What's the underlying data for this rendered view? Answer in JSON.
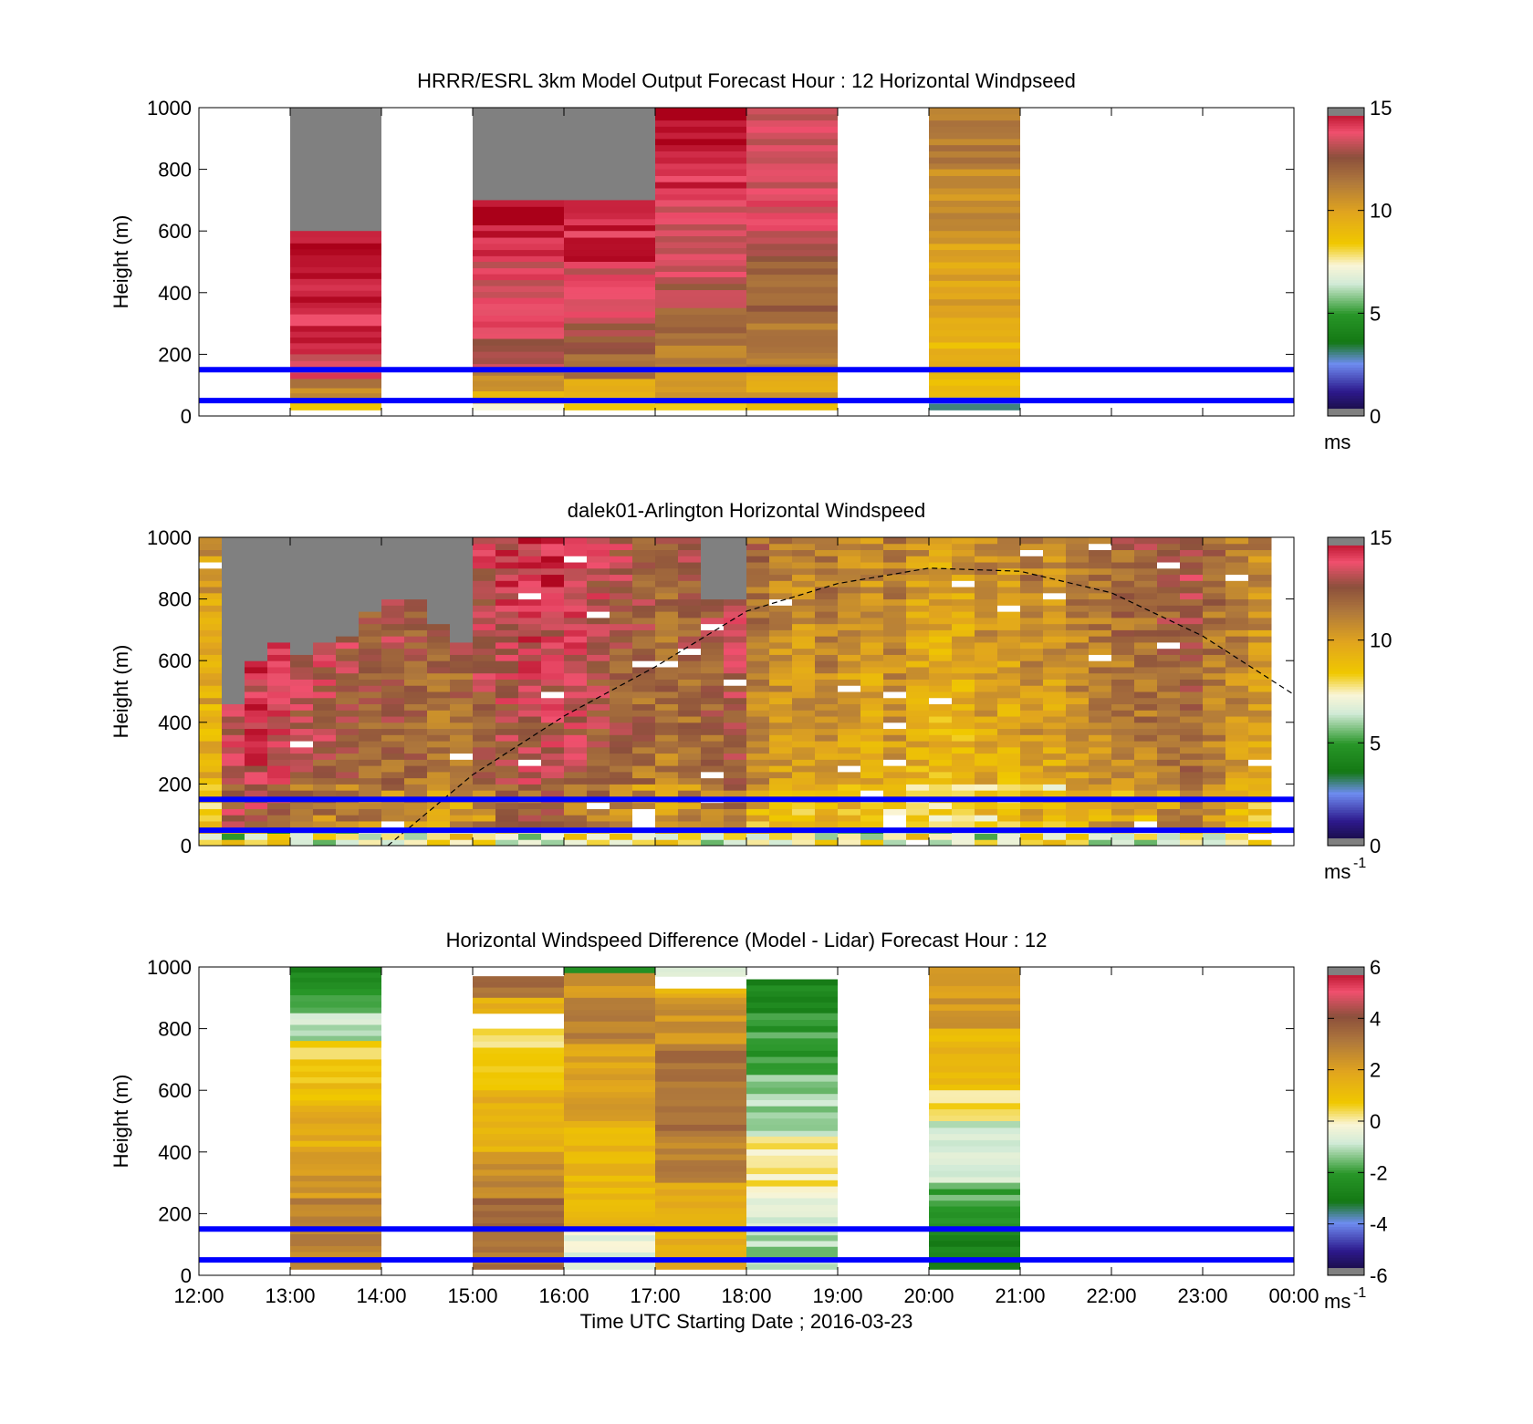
{
  "chart_data": [
    {
      "type": "heatmap",
      "title": "HRRR/ESRL 3km Model Output   Forecast Hour : 12 Horizontal Windpseed",
      "ylabel": "Height (m)",
      "ylim": [
        0,
        1000
      ],
      "yticks": [
        "0",
        "200",
        "400",
        "600",
        "800",
        "1000"
      ],
      "xlim_hours": [
        12,
        24
      ],
      "colorbar": {
        "ticks": [
          "0",
          "5",
          "10",
          "15"
        ],
        "range": [
          0,
          15
        ],
        "unit": "ms",
        "unit_sup": "",
        "scale": "speed"
      },
      "reference_lines_m": [
        50,
        150
      ],
      "columns": [
        {
          "start_hour": 13,
          "end_hour": 14,
          "top_m": 1000,
          "bands": [
            {
              "y0": 600,
              "y1": 1000,
              "v": null
            },
            {
              "y0": 350,
              "y1": 600,
              "v": 14.7
            },
            {
              "y0": 200,
              "y1": 350,
              "v": 14.3
            },
            {
              "y0": 120,
              "y1": 200,
              "v": 13.7
            },
            {
              "y0": 90,
              "y1": 120,
              "v": 12.0
            },
            {
              "y0": 60,
              "y1": 90,
              "v": 11.0
            },
            {
              "y0": 40,
              "y1": 60,
              "v": 10.0
            },
            {
              "y0": 20,
              "y1": 40,
              "v": 9.0
            }
          ]
        },
        {
          "start_hour": 15,
          "end_hour": 16,
          "top_m": 1000,
          "bands": [
            {
              "y0": 700,
              "y1": 1000,
              "v": null
            },
            {
              "y0": 600,
              "y1": 700,
              "v": 14.8
            },
            {
              "y0": 500,
              "y1": 600,
              "v": 14.3
            },
            {
              "y0": 250,
              "y1": 500,
              "v": 13.6
            },
            {
              "y0": 150,
              "y1": 250,
              "v": 13.0
            },
            {
              "y0": 80,
              "y1": 150,
              "v": 11.0
            },
            {
              "y0": 40,
              "y1": 80,
              "v": 9.5
            },
            {
              "y0": 20,
              "y1": 40,
              "v": 7.0
            }
          ]
        },
        {
          "start_hour": 16,
          "end_hour": 17,
          "top_m": 1000,
          "bands": [
            {
              "y0": 700,
              "y1": 1000,
              "v": null
            },
            {
              "y0": 600,
              "y1": 700,
              "v": 14.6
            },
            {
              "y0": 500,
              "y1": 600,
              "v": 14.3
            },
            {
              "y0": 300,
              "y1": 500,
              "v": 13.6
            },
            {
              "y0": 200,
              "y1": 300,
              "v": 12.6
            },
            {
              "y0": 120,
              "y1": 200,
              "v": 11.5
            },
            {
              "y0": 60,
              "y1": 120,
              "v": 9.8
            },
            {
              "y0": 20,
              "y1": 60,
              "v": 8.5
            }
          ]
        },
        {
          "start_hour": 17,
          "end_hour": 18,
          "top_m": 1000,
          "bands": [
            {
              "y0": 800,
              "y1": 1000,
              "v": 14.6
            },
            {
              "y0": 700,
              "y1": 800,
              "v": 14.3
            },
            {
              "y0": 450,
              "y1": 700,
              "v": 13.6
            },
            {
              "y0": 350,
              "y1": 450,
              "v": 12.8
            },
            {
              "y0": 250,
              "y1": 350,
              "v": 11.8
            },
            {
              "y0": 150,
              "y1": 250,
              "v": 11.2
            },
            {
              "y0": 60,
              "y1": 150,
              "v": 10.2
            },
            {
              "y0": 20,
              "y1": 60,
              "v": 8.8
            }
          ]
        },
        {
          "start_hour": 18,
          "end_hour": 19,
          "top_m": 1000,
          "bands": [
            {
              "y0": 600,
              "y1": 1000,
              "v": 13.6
            },
            {
              "y0": 500,
              "y1": 600,
              "v": 13.0
            },
            {
              "y0": 300,
              "y1": 500,
              "v": 12.0
            },
            {
              "y0": 150,
              "y1": 300,
              "v": 11.3
            },
            {
              "y0": 60,
              "y1": 150,
              "v": 10.0
            },
            {
              "y0": 20,
              "y1": 60,
              "v": 9.2
            }
          ]
        },
        {
          "start_hour": 20,
          "end_hour": 21,
          "top_m": 1000,
          "bands": [
            {
              "y0": 800,
              "y1": 1000,
              "v": 11.3
            },
            {
              "y0": 600,
              "y1": 800,
              "v": 10.7
            },
            {
              "y0": 300,
              "y1": 600,
              "v": 10.0
            },
            {
              "y0": 60,
              "y1": 300,
              "v": 9.2
            },
            {
              "y0": 20,
              "y1": 60,
              "v": 3.0
            }
          ]
        }
      ]
    },
    {
      "type": "heatmap",
      "title": "dalek01-Arlington  Horizontal Windspeed",
      "ylabel": "Height (m)",
      "ylim": [
        0,
        1000
      ],
      "yticks": [
        "0",
        "200",
        "400",
        "600",
        "800",
        "1000"
      ],
      "xlim_hours": [
        12,
        24
      ],
      "colorbar": {
        "ticks": [
          "0",
          "5",
          "10",
          "15"
        ],
        "range": [
          0,
          15
        ],
        "unit": "ms",
        "unit_sup": "-1",
        "scale": "speed"
      },
      "reference_lines_m": [
        50,
        150
      ],
      "overlay_curve": {
        "style": "dashed",
        "start_hour": 14.07,
        "peak_hour": 20.0,
        "peak_m": 900,
        "points": [
          [
            14.07,
            0
          ],
          [
            15.0,
            230
          ],
          [
            16.0,
            420
          ],
          [
            17.0,
            580
          ],
          [
            18.0,
            760
          ],
          [
            19.0,
            850
          ],
          [
            20.0,
            900
          ],
          [
            21.0,
            890
          ],
          [
            22.0,
            820
          ],
          [
            23.0,
            680
          ],
          [
            24.0,
            490
          ]
        ]
      },
      "profiles": {
        "start_hour": 12.0,
        "step_hours": 0.25,
        "tops_m": [
          1000,
          460,
          590,
          650,
          620,
          660,
          680,
          750,
          800,
          800,
          720,
          660,
          1000,
          1000,
          1000,
          1000,
          1000,
          1000,
          1000,
          1000,
          1000,
          1000,
          800,
          800,
          1000,
          1000,
          1000,
          1000,
          1000,
          1000,
          1000,
          1000,
          1000,
          1000,
          1000,
          1000,
          1000,
          1000,
          1000,
          1000,
          1000,
          1000,
          1000,
          1000,
          1000,
          1000,
          1000,
          1000
        ],
        "profile_means": [
          9.5,
          13.6,
          13.8,
          13.6,
          13.0,
          12.8,
          12.5,
          12.0,
          12.2,
          12.0,
          11.6,
          11.8,
          12.5,
          13.0,
          13.2,
          13.2,
          13.0,
          12.6,
          12.2,
          11.8,
          11.4,
          11.8,
          12.0,
          12.6,
          11.0,
          10.4,
          10.2,
          10.6,
          10.0,
          9.8,
          10.4,
          9.6,
          9.2,
          9.4,
          10.0,
          9.6,
          10.4,
          10.0,
          10.6,
          10.8,
          11.2,
          11.4,
          11.8,
          12.0,
          11.0,
          10.6,
          10.2,
          9.8
        ],
        "missing_gaps_m": [
          [
            850,
            980
          ],
          [
            700,
            980
          ],
          [
            500,
            600
          ],
          [
            700,
            980
          ],
          [
            650,
            980
          ],
          [
            700,
            980
          ],
          [
            800,
            980
          ]
        ]
      }
    },
    {
      "type": "heatmap",
      "title": "Horizontal Windspeed Difference (Model - Lidar) Forecast Hour : 12",
      "ylabel": "Height (m)",
      "xlabel": "Time UTC  Starting Date ; 2016-03-23",
      "ylim": [
        0,
        1000
      ],
      "yticks": [
        "0",
        "200",
        "400",
        "600",
        "800",
        "1000"
      ],
      "xlim_hours": [
        12,
        24
      ],
      "xticks": [
        "12:00",
        "13:00",
        "14:00",
        "15:00",
        "16:00",
        "17:00",
        "18:00",
        "19:00",
        "20:00",
        "21:00",
        "22:00",
        "23:00",
        "00:00"
      ],
      "colorbar": {
        "ticks": [
          "-6",
          "-4",
          "-2",
          "0",
          "2",
          "4",
          "6"
        ],
        "range": [
          -6,
          6
        ],
        "unit": "ms",
        "unit_sup": "-1",
        "scale": "difference"
      },
      "reference_lines_m": [
        50,
        150
      ],
      "columns": [
        {
          "start_hour": 13,
          "end_hour": 14,
          "top_m": 1000,
          "bands": [
            {
              "y0": 950,
              "y1": 1000,
              "v": -2.6
            },
            {
              "y0": 850,
              "y1": 950,
              "v": -2.0
            },
            {
              "y0": 760,
              "y1": 850,
              "v": -1.0
            },
            {
              "y0": 700,
              "y1": 760,
              "v": 0.4
            },
            {
              "y0": 550,
              "y1": 700,
              "v": 1.0
            },
            {
              "y0": 400,
              "y1": 550,
              "v": 1.6
            },
            {
              "y0": 250,
              "y1": 400,
              "v": 2.2
            },
            {
              "y0": 20,
              "y1": 250,
              "v": 2.8
            }
          ]
        },
        {
          "start_hour": 15,
          "end_hour": 16,
          "top_m": 970,
          "bands": [
            {
              "y0": 900,
              "y1": 970,
              "v": 3.5
            },
            {
              "y0": 850,
              "y1": 900,
              "v": 1.5
            },
            {
              "y0": 600,
              "y1": 800,
              "v": 0.5
            },
            {
              "y0": 400,
              "y1": 600,
              "v": 1.6
            },
            {
              "y0": 250,
              "y1": 400,
              "v": 2.6
            },
            {
              "y0": 150,
              "y1": 250,
              "v": 3.6
            },
            {
              "y0": 20,
              "y1": 150,
              "v": 3.2
            }
          ]
        },
        {
          "start_hour": 16,
          "end_hour": 17,
          "top_m": 1000,
          "bands": [
            {
              "y0": 980,
              "y1": 1000,
              "v": -2.6
            },
            {
              "y0": 900,
              "y1": 980,
              "v": 2.4
            },
            {
              "y0": 750,
              "y1": 900,
              "v": 2.8
            },
            {
              "y0": 500,
              "y1": 750,
              "v": 2.0
            },
            {
              "y0": 150,
              "y1": 500,
              "v": 1.3
            },
            {
              "y0": 20,
              "y1": 150,
              "v": -0.4
            }
          ]
        },
        {
          "start_hour": 17,
          "end_hour": 18,
          "top_m": 1000,
          "bands": [
            {
              "y0": 970,
              "y1": 1000,
              "v": -0.6
            },
            {
              "y0": 900,
              "y1": 930,
              "v": 1.4
            },
            {
              "y0": 750,
              "y1": 900,
              "v": 2.4
            },
            {
              "y0": 450,
              "y1": 750,
              "v": 3.2
            },
            {
              "y0": 300,
              "y1": 450,
              "v": 2.8
            },
            {
              "y0": 20,
              "y1": 300,
              "v": 1.5
            }
          ]
        },
        {
          "start_hour": 18,
          "end_hour": 19,
          "top_m": 960,
          "bands": [
            {
              "y0": 850,
              "y1": 960,
              "v": -2.6
            },
            {
              "y0": 650,
              "y1": 850,
              "v": -2.0
            },
            {
              "y0": 450,
              "y1": 650,
              "v": -1.2
            },
            {
              "y0": 250,
              "y1": 450,
              "v": 0.2
            },
            {
              "y0": 150,
              "y1": 250,
              "v": -0.5
            },
            {
              "y0": 20,
              "y1": 150,
              "v": -1.2
            }
          ]
        },
        {
          "start_hour": 20,
          "end_hour": 21,
          "top_m": 1000,
          "bands": [
            {
              "y0": 800,
              "y1": 1000,
              "v": 2.2
            },
            {
              "y0": 600,
              "y1": 800,
              "v": 1.2
            },
            {
              "y0": 500,
              "y1": 600,
              "v": 0.3
            },
            {
              "y0": 300,
              "y1": 500,
              "v": -0.8
            },
            {
              "y0": 150,
              "y1": 300,
              "v": -1.8
            },
            {
              "y0": 20,
              "y1": 150,
              "v": -2.7
            }
          ]
        }
      ]
    }
  ]
}
